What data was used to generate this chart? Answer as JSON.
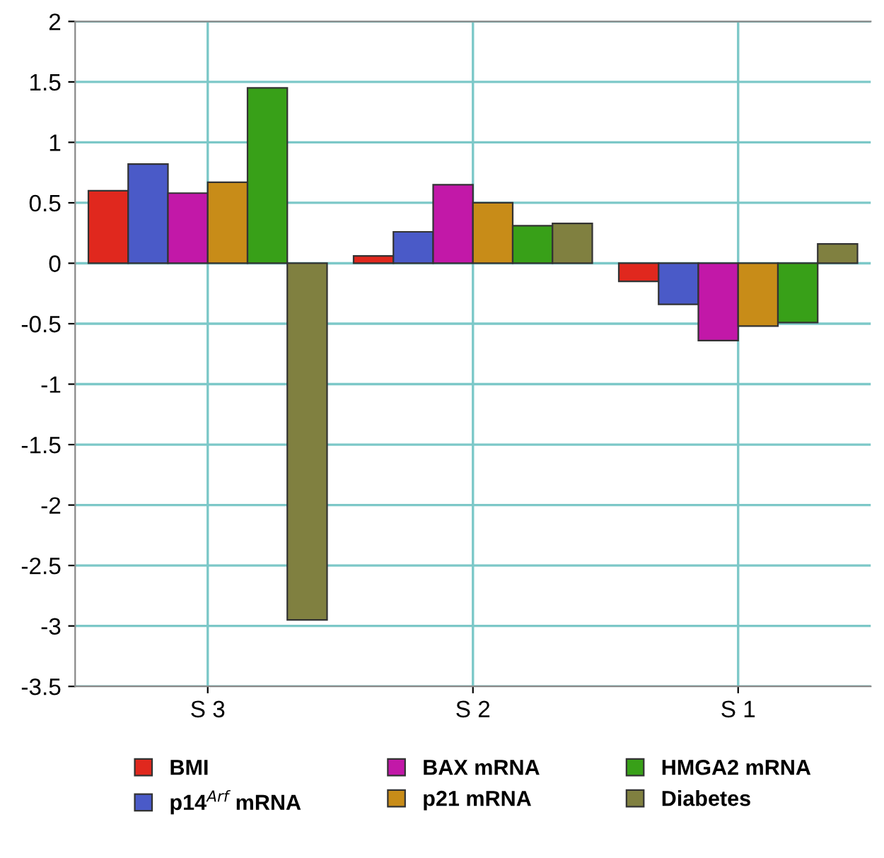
{
  "chart_data": {
    "type": "bar",
    "categories": [
      "S 3",
      "S 2",
      "S 1"
    ],
    "series": [
      {
        "name": "BMI",
        "color": "#e0281e",
        "values": [
          0.6,
          0.06,
          -0.15
        ]
      },
      {
        "name": "p14$^{Arf}$ mRNA",
        "color": "#4a5ac8",
        "values": [
          0.82,
          0.26,
          -0.34
        ]
      },
      {
        "name": "BAX mRNA",
        "color": "#c218a8",
        "values": [
          0.58,
          0.65,
          -0.64
        ]
      },
      {
        "name": "p21 mRNA",
        "color": "#c88c18",
        "values": [
          0.67,
          0.5,
          -0.52
        ]
      },
      {
        "name": "HMGA2 mRNA",
        "color": "#38a018",
        "values": [
          1.45,
          0.31,
          -0.49
        ]
      },
      {
        "name": "Diabetes",
        "color": "#808040",
        "values": [
          -2.95,
          0.33,
          0.16
        ]
      }
    ],
    "ylim": [
      -3.5,
      2
    ],
    "yticks": [
      -3.5,
      -3,
      -2.5,
      -2,
      -1.5,
      -1,
      -0.5,
      0,
      0.5,
      1,
      1.5,
      2
    ],
    "grid": true,
    "legend": "bottom"
  }
}
